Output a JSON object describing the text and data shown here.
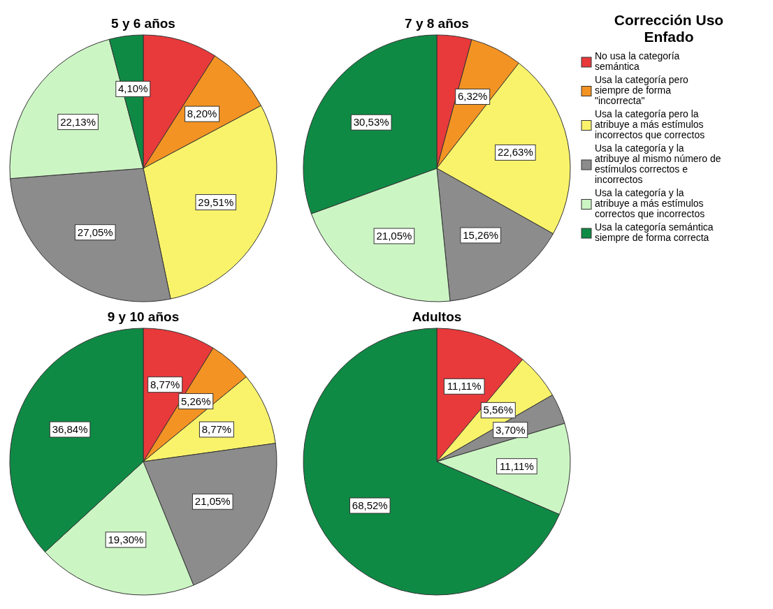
{
  "chart_data": [
    {
      "type": "pie",
      "title": "5 y 6 años",
      "categories": [
        "No usa la categoría semántica",
        "Usa la categoría pero siempre de forma \"incorrecta\"",
        "Usa la categoría pero la atribuye a más estímulos incorrectos que correctos",
        "Usa la categoría y la atribuye al mismo número de estímulos correctos e incorrectos",
        "Usa la categoría y la atribuye a más estímulos correctos que incorrectos",
        "Usa la categoría semántica siempre de forma correcta"
      ],
      "values": [
        9.01,
        8.2,
        29.51,
        27.05,
        22.13,
        4.1
      ],
      "value_labels": [
        null,
        "8,20%",
        "29,51%",
        "27,05%",
        "22,13%",
        "4,10%"
      ],
      "colors": [
        "#e8393b",
        "#f39323",
        "#f9f36b",
        "#8c8c8c",
        "#ccf5c4",
        "#0f8a45"
      ],
      "legend": "right",
      "legend_title": "Corrección Uso Enfado"
    },
    {
      "type": "pie",
      "title": "7 y 8 años",
      "categories": [
        null,
        null,
        null,
        null,
        null,
        null
      ],
      "values": [
        4.21,
        6.32,
        22.63,
        15.26,
        21.05,
        30.53
      ],
      "value_labels": [
        null,
        "6,32%",
        "22,63%",
        "15,26%",
        "21,05%",
        "30,53%"
      ],
      "colors": [
        "#e8393b",
        "#f39323",
        "#f9f36b",
        "#8c8c8c",
        "#ccf5c4",
        "#0f8a45"
      ]
    },
    {
      "type": "pie",
      "title": "9 y 10 años",
      "categories": [
        null,
        null,
        null,
        null,
        null,
        null
      ],
      "values": [
        8.77,
        5.26,
        8.77,
        21.05,
        19.3,
        36.84
      ],
      "value_labels": [
        "8,77%",
        "5,26%",
        "8,77%",
        "21,05%",
        "19,30%",
        "36,84%"
      ],
      "colors": [
        "#e8393b",
        "#f39323",
        "#f9f36b",
        "#8c8c8c",
        "#ccf5c4",
        "#0f8a45"
      ]
    },
    {
      "type": "pie",
      "title": "Adultos",
      "categories": [
        null,
        null,
        null,
        null,
        null
      ],
      "values": [
        11.11,
        5.56,
        3.7,
        11.11,
        68.52
      ],
      "value_labels": [
        "11,11%",
        "5,56%",
        "3,70%",
        "11,11%",
        "68,52%"
      ],
      "colors": [
        "#e8393b",
        "#f9f36b",
        "#8c8c8c",
        "#ccf5c4",
        "#0f8a45"
      ]
    }
  ]
}
